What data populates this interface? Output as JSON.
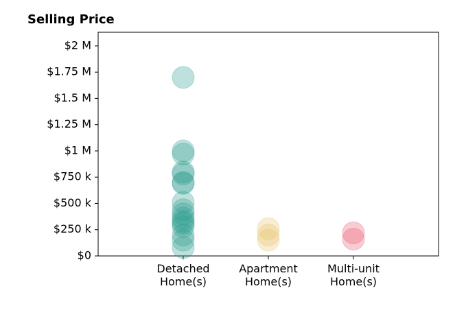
{
  "chart_data": {
    "type": "strip",
    "title": "Selling Price",
    "categories": [
      "Detached Home(s)",
      "Apartment Home(s)",
      "Multi-unit Home(s)"
    ],
    "values": [
      [
        1700000,
        1000000,
        970000,
        800000,
        780000,
        700000,
        690000,
        510000,
        440000,
        400000,
        360000,
        330000,
        310000,
        280000,
        200000,
        150000,
        80000
      ],
      [
        260000,
        200000,
        150000
      ],
      [
        220000,
        160000
      ]
    ],
    "colors": [
      "#2a9d8f",
      "#e9c46a",
      "#e8566c"
    ],
    "ylim": [
      0,
      2130000
    ],
    "yticks": [
      {
        "value": 0,
        "label": "$0"
      },
      {
        "value": 250000,
        "label": "$250 k"
      },
      {
        "value": 500000,
        "label": "$500 k"
      },
      {
        "value": 750000,
        "label": "$750 k"
      },
      {
        "value": 1000000,
        "label": "$1 M"
      },
      {
        "value": 1250000,
        "label": "$1.25 M"
      },
      {
        "value": 1500000,
        "label": "$1.5 M"
      },
      {
        "value": 1750000,
        "label": "$1.75 M"
      },
      {
        "value": 2000000,
        "label": "$2 M"
      }
    ]
  }
}
